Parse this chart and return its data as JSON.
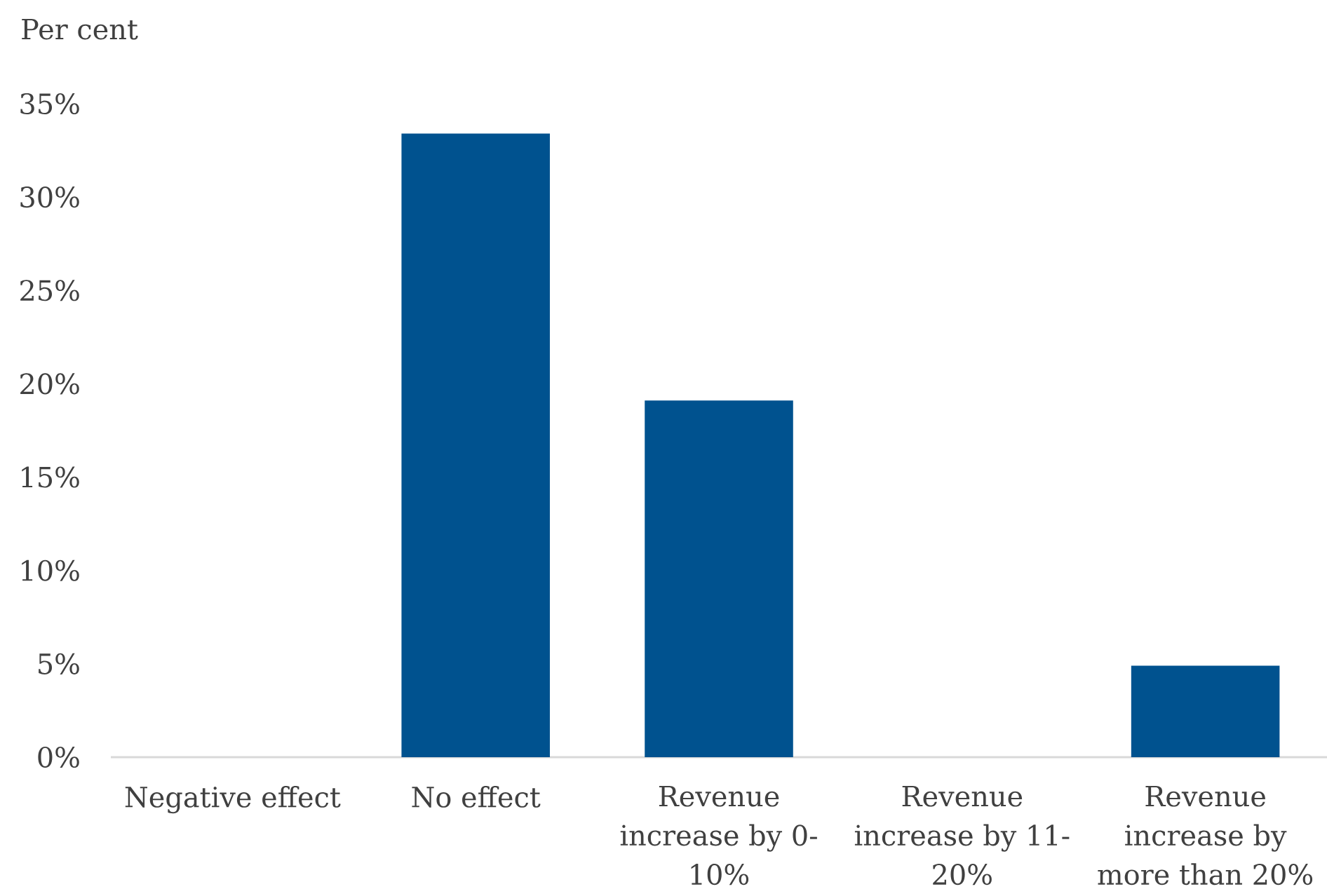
{
  "chart_data": {
    "type": "bar",
    "ylabel": "Per cent",
    "categories": [
      "Negative effect",
      "No effect",
      "Revenue increase by 0-10%",
      "Revenue increase by 11-20%",
      "Revenue increase by more than 20%"
    ],
    "values": [
      0,
      33.4,
      19.1,
      0,
      4.9
    ],
    "color": "#00528f",
    "ylim": [
      0,
      35
    ],
    "yticks": [
      {
        "value": 0,
        "label": "0%"
      },
      {
        "value": 5,
        "label": "5%"
      },
      {
        "value": 10,
        "label": "10%"
      },
      {
        "value": 15,
        "label": "15%"
      },
      {
        "value": 20,
        "label": "20%"
      },
      {
        "value": 25,
        "label": "25%"
      },
      {
        "value": 30,
        "label": "30%"
      },
      {
        "value": 35,
        "label": "35%"
      }
    ]
  }
}
